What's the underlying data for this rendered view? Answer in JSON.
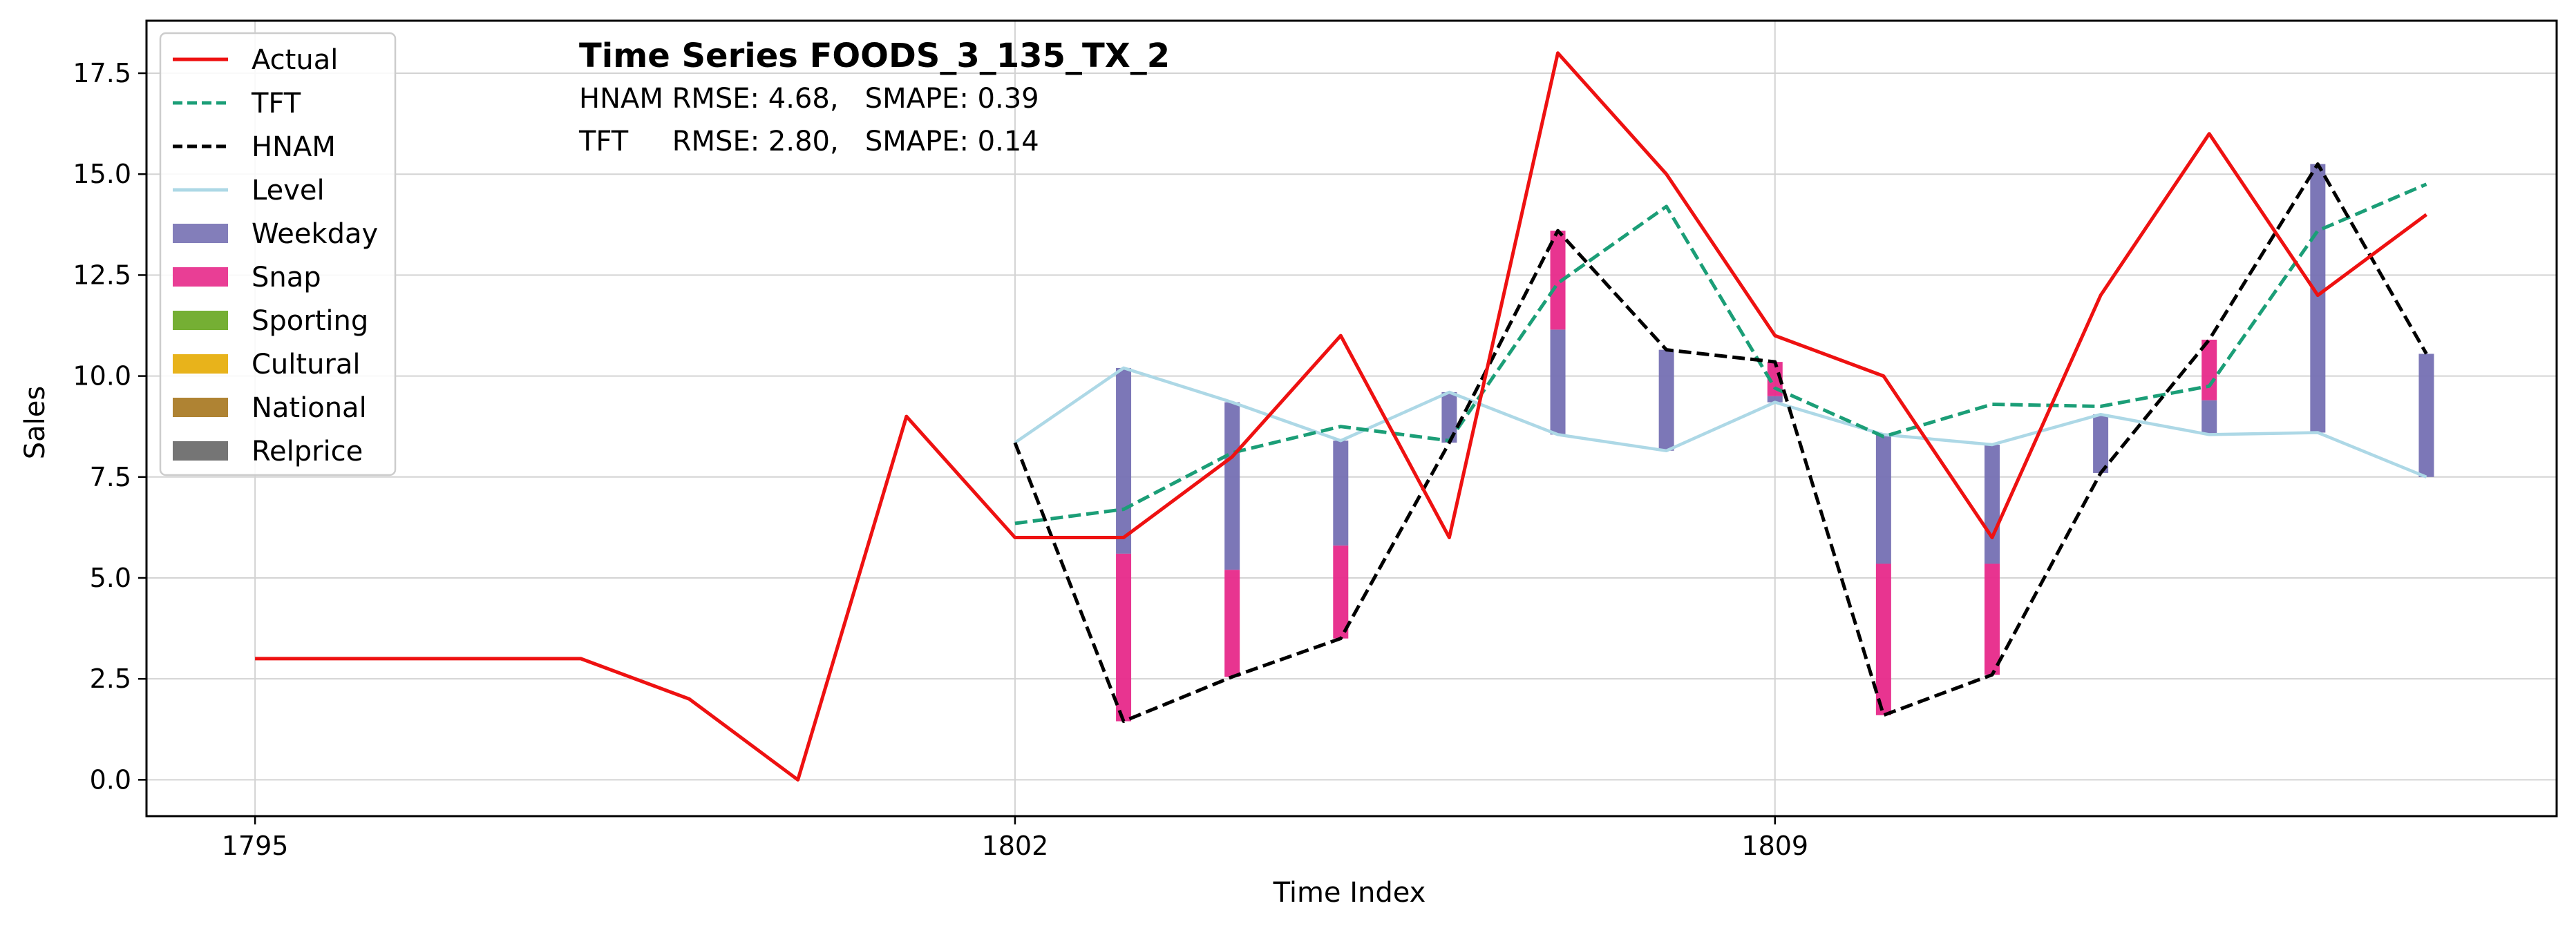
{
  "chart_data": {
    "type": "line",
    "title": "Time Series FOODS_3_135_TX_2",
    "metrics": [
      "HNAM RMSE: 4.68,   SMAPE: 0.39",
      "TFT     RMSE: 2.80,   SMAPE: 0.14"
    ],
    "xlabel": "Time Index",
    "ylabel": "Sales",
    "xlim": [
      1794.0,
      1816.2
    ],
    "ylim": [
      -0.9,
      18.8
    ],
    "x_ticks": [
      1795,
      1802,
      1809
    ],
    "y_ticks": [
      0.0,
      2.5,
      5.0,
      7.5,
      10.0,
      12.5,
      15.0,
      17.5
    ],
    "y_tick_labels": [
      "0.0",
      "2.5",
      "5.0",
      "7.5",
      "10.0",
      "12.5",
      "15.0",
      "17.5"
    ],
    "x_tick_labels": [
      "1795",
      "1802",
      "1809"
    ],
    "grid": true,
    "legend_position": "top-left",
    "series": [
      {
        "name": "Actual",
        "color": "#ee1111",
        "style": "solid",
        "x": [
          1795,
          1796,
          1797,
          1798,
          1799,
          1800,
          1801,
          1802,
          1803,
          1804,
          1805,
          1806,
          1807,
          1808,
          1809,
          1810,
          1811,
          1812,
          1813,
          1814,
          1815
        ],
        "y": [
          3,
          3,
          3,
          3,
          2,
          0,
          9,
          6,
          6,
          8,
          11,
          6,
          18,
          15,
          11,
          10,
          6,
          12,
          16,
          12,
          14
        ]
      },
      {
        "name": "TFT",
        "color": "#1b9e77",
        "style": "dashed",
        "x": [
          1802,
          1803,
          1804,
          1805,
          1806,
          1807,
          1808,
          1809,
          1810,
          1811,
          1812,
          1813,
          1814,
          1815
        ],
        "y": [
          6.35,
          6.7,
          8.1,
          8.75,
          8.4,
          12.3,
          14.2,
          9.7,
          8.5,
          9.3,
          9.25,
          9.75,
          13.6,
          14.75
        ]
      },
      {
        "name": "HNAM",
        "color": "#000000",
        "style": "dashed",
        "x": [
          1802,
          1803,
          1804,
          1805,
          1806,
          1807,
          1808,
          1809,
          1810,
          1811,
          1812,
          1813,
          1814,
          1815
        ],
        "y": [
          8.35,
          1.45,
          2.55,
          3.5,
          8.35,
          13.6,
          10.65,
          10.35,
          1.6,
          2.6,
          7.6,
          10.9,
          15.25,
          10.55
        ]
      },
      {
        "name": "Level",
        "color": "#add8e6",
        "style": "solid",
        "x": [
          1802,
          1803,
          1804,
          1805,
          1806,
          1807,
          1808,
          1809,
          1810,
          1811,
          1812,
          1813,
          1814,
          1815
        ],
        "y": [
          8.35,
          10.2,
          9.35,
          8.4,
          9.6,
          8.55,
          8.15,
          9.35,
          8.55,
          8.3,
          9.05,
          8.55,
          8.6,
          7.5
        ]
      }
    ],
    "component_legend": [
      {
        "name": "Weekday",
        "color": "#7570b3"
      },
      {
        "name": "Snap",
        "color": "#e7298a"
      },
      {
        "name": "Sporting",
        "color": "#66a61e"
      },
      {
        "name": "Cultural",
        "color": "#e6ab02"
      },
      {
        "name": "National",
        "color": "#a6761d"
      },
      {
        "name": "Relprice",
        "color": "#666666"
      }
    ],
    "component_bars": [
      {
        "x": 1803,
        "segments": [
          {
            "name": "Weekday",
            "from": 10.2,
            "to": 5.6
          },
          {
            "name": "Snap",
            "from": 5.6,
            "to": 1.45
          }
        ]
      },
      {
        "x": 1804,
        "segments": [
          {
            "name": "Weekday",
            "from": 9.35,
            "to": 5.2
          },
          {
            "name": "Snap",
            "from": 5.2,
            "to": 2.55
          }
        ]
      },
      {
        "x": 1805,
        "segments": [
          {
            "name": "Weekday",
            "from": 8.4,
            "to": 5.8
          },
          {
            "name": "Snap",
            "from": 5.8,
            "to": 3.5
          }
        ]
      },
      {
        "x": 1806,
        "segments": [
          {
            "name": "Weekday",
            "from": 8.35,
            "to": 9.6
          }
        ]
      },
      {
        "x": 1807,
        "segments": [
          {
            "name": "Weekday",
            "from": 8.55,
            "to": 11.15
          },
          {
            "name": "Snap",
            "from": 11.15,
            "to": 13.6
          }
        ]
      },
      {
        "x": 1808,
        "segments": [
          {
            "name": "Weekday",
            "from": 8.15,
            "to": 10.65
          }
        ]
      },
      {
        "x": 1809,
        "segments": [
          {
            "name": "Weekday",
            "from": 9.35,
            "to": 9.5
          },
          {
            "name": "Snap",
            "from": 9.5,
            "to": 10.35
          }
        ]
      },
      {
        "x": 1810,
        "segments": [
          {
            "name": "Weekday",
            "from": 8.55,
            "to": 5.35
          },
          {
            "name": "Snap",
            "from": 5.35,
            "to": 1.6
          }
        ]
      },
      {
        "x": 1811,
        "segments": [
          {
            "name": "Weekday",
            "from": 8.3,
            "to": 5.35
          },
          {
            "name": "Snap",
            "from": 5.35,
            "to": 2.6
          }
        ]
      },
      {
        "x": 1812,
        "segments": [
          {
            "name": "Weekday",
            "from": 9.05,
            "to": 7.6
          }
        ]
      },
      {
        "x": 1813,
        "segments": [
          {
            "name": "Weekday",
            "from": 8.55,
            "to": 9.4
          },
          {
            "name": "Snap",
            "from": 9.4,
            "to": 10.9
          }
        ]
      },
      {
        "x": 1814,
        "segments": [
          {
            "name": "Weekday",
            "from": 8.6,
            "to": 15.25
          }
        ]
      },
      {
        "x": 1815,
        "segments": [
          {
            "name": "Weekday",
            "from": 7.5,
            "to": 10.55
          }
        ]
      }
    ]
  }
}
